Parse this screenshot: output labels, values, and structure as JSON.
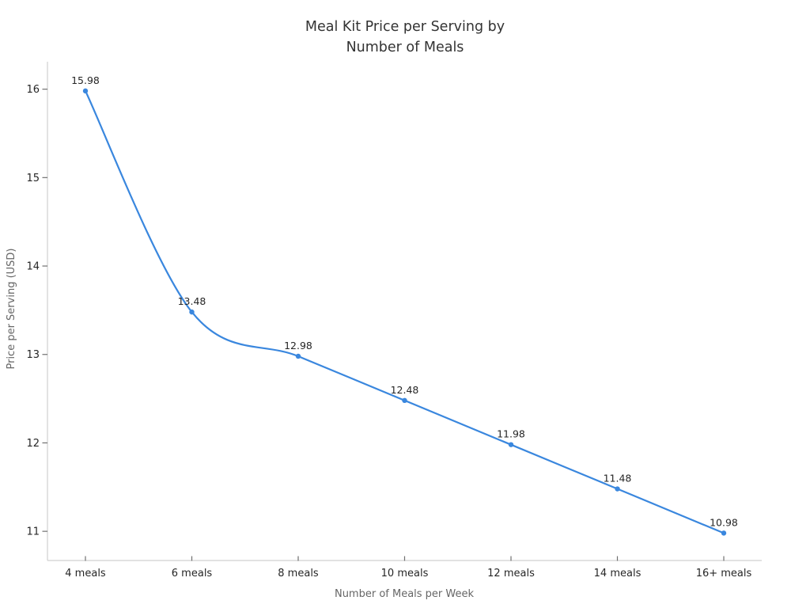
{
  "chart_data": {
    "type": "line",
    "title_line1": "Meal Kit Price per Serving by",
    "title_line2": "Number of Meals",
    "xlabel": "Number of Meals per Week",
    "ylabel": "Price per Serving (USD)",
    "categories": [
      "4 meals",
      "6 meals",
      "8 meals",
      "10 meals",
      "12 meals",
      "14 meals",
      "16+ meals"
    ],
    "values": [
      15.98,
      13.48,
      12.98,
      12.48,
      11.98,
      11.48,
      10.98
    ],
    "point_labels": [
      "15.98",
      "13.48",
      "12.98",
      "12.48",
      "11.98",
      "11.48",
      "10.98"
    ],
    "yticks": [
      11,
      12,
      13,
      14,
      15,
      16
    ],
    "ylim": [
      10.67,
      16.31
    ],
    "grid": false,
    "legend_position": "none",
    "smooth": true,
    "line_color": "#3a87de",
    "marker_color": "#3a87de",
    "spine_color": "#d0d0d0",
    "tick_mark_color": "#707070",
    "tick_label_color": "#262626",
    "axis_title_color": "#666666",
    "title_color": "#333333",
    "background_color": "#ffffff"
  }
}
